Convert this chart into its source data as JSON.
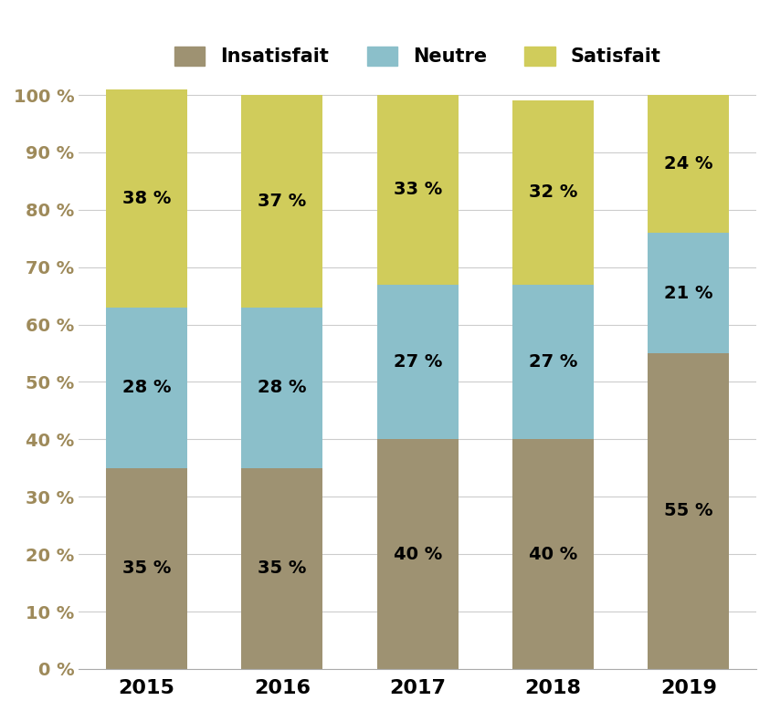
{
  "years": [
    "2015",
    "2016",
    "2017",
    "2018",
    "2019"
  ],
  "insatisfait": [
    35,
    35,
    40,
    40,
    55
  ],
  "neutre": [
    28,
    28,
    27,
    27,
    21
  ],
  "satisfait": [
    38,
    37,
    33,
    32,
    24
  ],
  "color_insatisfait": "#9e9272",
  "color_neutre": "#8bbfca",
  "color_satisfait": "#d0cc5b",
  "legend_labels": [
    "Insatisfait",
    "Neutre",
    "Satisfait"
  ],
  "yticks": [
    0,
    10,
    20,
    30,
    40,
    50,
    60,
    70,
    80,
    90,
    100
  ],
  "ytick_labels": [
    "0 %",
    "10 %",
    "20 %",
    "30 %",
    "40 %",
    "50 %",
    "60 %",
    "70 %",
    "80 %",
    "90 %",
    "100 %"
  ],
  "tick_color": "#9e8a5a",
  "label_fontsize": 14,
  "legend_fontsize": 15,
  "tick_fontsize": 14,
  "bar_width": 0.6,
  "background_color": "#ffffff",
  "ylim_max": 102
}
